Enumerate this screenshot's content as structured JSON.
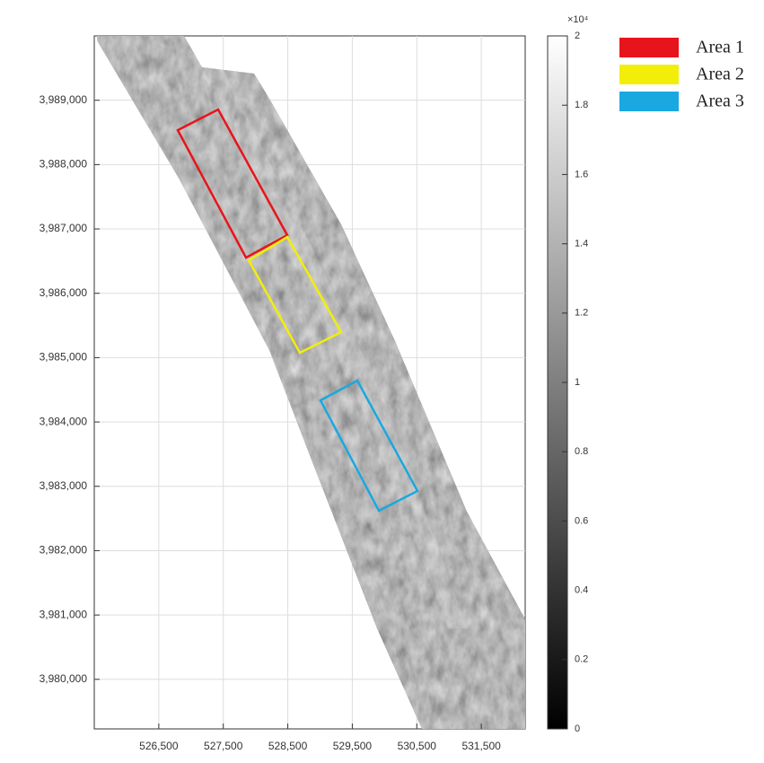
{
  "map": {
    "xlim": [
      525500,
      532180
    ],
    "ylim": [
      3979230,
      3990000
    ],
    "grid": true,
    "xticks": [
      {
        "value": 526500,
        "label": "526,500"
      },
      {
        "value": 527500,
        "label": "527,500"
      },
      {
        "value": 528500,
        "label": "528,500"
      },
      {
        "value": 529500,
        "label": "529,500"
      },
      {
        "value": 530500,
        "label": "530,500"
      },
      {
        "value": 531500,
        "label": "531,500"
      }
    ],
    "yticks": [
      {
        "value": 3980000,
        "label": "3,980,000"
      },
      {
        "value": 3981000,
        "label": "3,981,000"
      },
      {
        "value": 3982000,
        "label": "3,982,000"
      },
      {
        "value": 3983000,
        "label": "3,983,000"
      },
      {
        "value": 3984000,
        "label": "3,984,000"
      },
      {
        "value": 3985000,
        "label": "3,985,000"
      },
      {
        "value": 3986000,
        "label": "3,986,000"
      },
      {
        "value": 3987000,
        "label": "3,987,000"
      },
      {
        "value": 3988000,
        "label": "3,988,000"
      },
      {
        "value": 3989000,
        "label": "3,989,000"
      }
    ]
  },
  "colorbar": {
    "lim": [
      0,
      2
    ],
    "ticks": [
      0,
      0.2,
      0.4,
      0.6,
      0.8,
      1,
      1.2,
      1.4,
      1.6,
      1.8,
      2
    ],
    "multiplier": "×10⁴"
  },
  "legend": [
    {
      "name": "Area 1",
      "color": "#e8141c"
    },
    {
      "name": "Area 2",
      "color": "#f2ee0a"
    },
    {
      "name": "Area 3",
      "color": "#1aa8e0"
    }
  ]
}
